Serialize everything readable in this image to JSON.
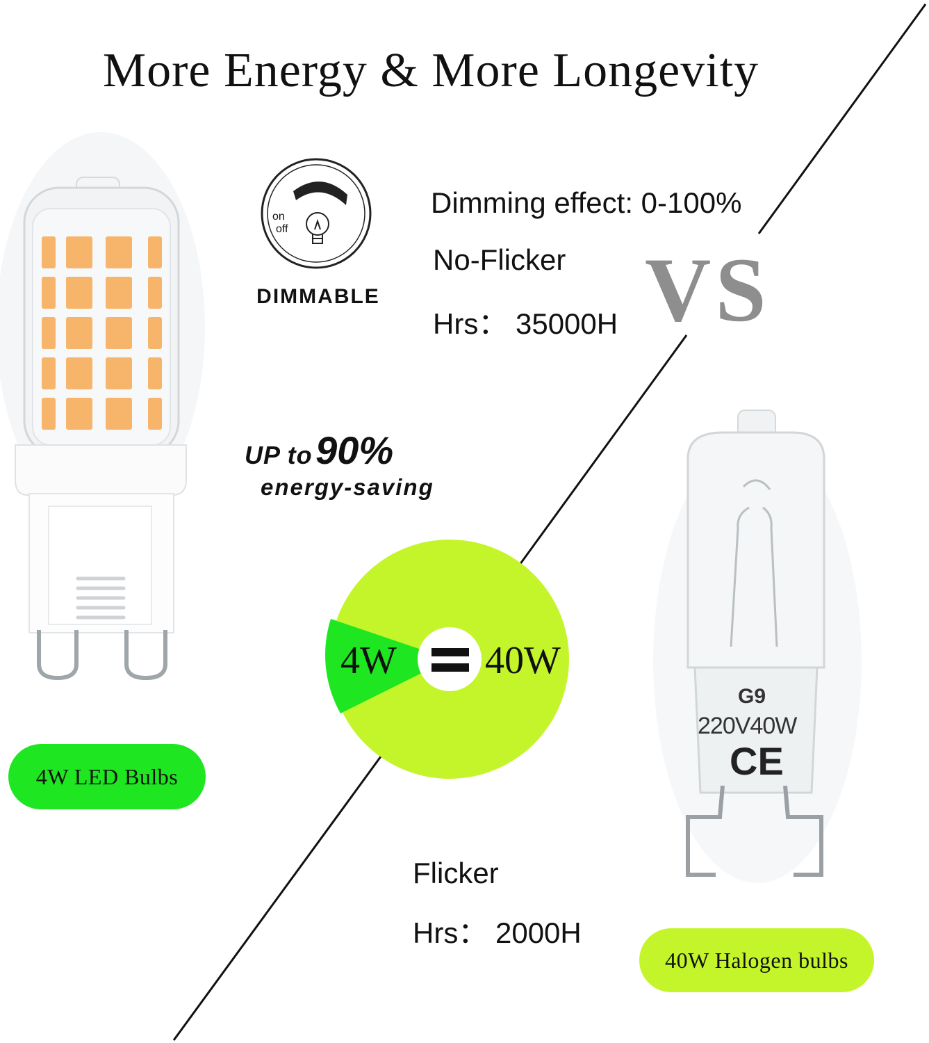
{
  "title": "More Energy & More Longevity",
  "led": {
    "specs": {
      "dimming": "Dimming effect: 0-100%",
      "flicker": "No-Flicker",
      "hours": "Hrs： 35000H"
    },
    "dimmable_icon": {
      "on_label": "on",
      "off_label": "off",
      "caption": "DIMMABLE"
    },
    "saving": {
      "prefix": "UP to",
      "percent": "90%",
      "suffix": "energy-saving"
    },
    "label": "4W LED Bulbs"
  },
  "vs_text": "VS",
  "comparison": {
    "left_watt": "4W",
    "equals": "=",
    "right_watt": "40W"
  },
  "halogen": {
    "specs": {
      "flicker": "Flicker",
      "hours": "Hrs： 2000H"
    },
    "bulb_marking": {
      "model": "G9",
      "rating": "220V40W",
      "mark": "CE"
    },
    "label": "40W Halogen bulbs"
  },
  "colors": {
    "led_green": "#1ee620",
    "halogen_green": "#c3f52a",
    "vs_gray": "#8e8e8e",
    "led_chip": "#f6b56b"
  }
}
